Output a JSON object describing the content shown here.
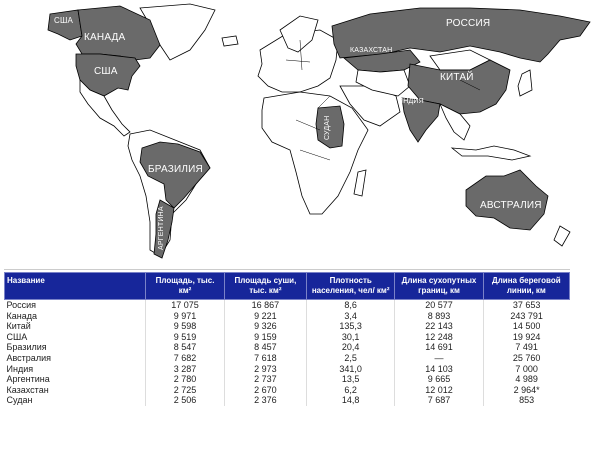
{
  "map": {
    "labels": {
      "usa_alaska": "США",
      "canada": "КАНАДА",
      "usa": "США",
      "russia": "РОССИЯ",
      "kazakhstan": "КАЗАХСТАН",
      "china": "КИТАЙ",
      "india": "ИНДИЯ",
      "sudan": "СУДАН",
      "brazil": "БРАЗИЛИЯ",
      "argentina": "АРГЕНТИНА",
      "australia": "АВСТРАЛИЯ"
    },
    "colors": {
      "highlight": "#6a6a6a",
      "land": "#ffffff",
      "table_header": "#17269a"
    }
  },
  "table": {
    "headers": [
      "Название",
      "Площадь, тыс. км²",
      "Площадь суши, тыс. км²",
      "Плотность населения, чел/ км²",
      "Длина сухопутных границ, км",
      "Длина береговой линии, км"
    ],
    "rows": [
      [
        "Россия",
        "17 075",
        "16 867",
        "8,6",
        "20 577",
        "37 653"
      ],
      [
        "Канада",
        "9 971",
        "9 221",
        "3,4",
        "8 893",
        "243 791"
      ],
      [
        "Китай",
        "9 598",
        "9 326",
        "135,3",
        "22 143",
        "14 500"
      ],
      [
        "США",
        "9 519",
        "9 159",
        "30,1",
        "12 248",
        "19 924"
      ],
      [
        "Бразилия",
        "8 547",
        "8 457",
        "20,4",
        "14 691",
        "7 491"
      ],
      [
        "Австралия",
        "7 682",
        "7 618",
        "2,5",
        "—",
        "25 760"
      ],
      [
        "Индия",
        "3 287",
        "2 973",
        "341,0",
        "14 103",
        "7 000"
      ],
      [
        "Аргентина",
        "2 780",
        "2 737",
        "13,5",
        "9 665",
        "4 989"
      ],
      [
        "Казахстан",
        "2 725",
        "2 670",
        "6,2",
        "12 012",
        "2 964*"
      ],
      [
        "Судан",
        "2 506",
        "2 376",
        "14,8",
        "7 687",
        "853"
      ]
    ]
  }
}
